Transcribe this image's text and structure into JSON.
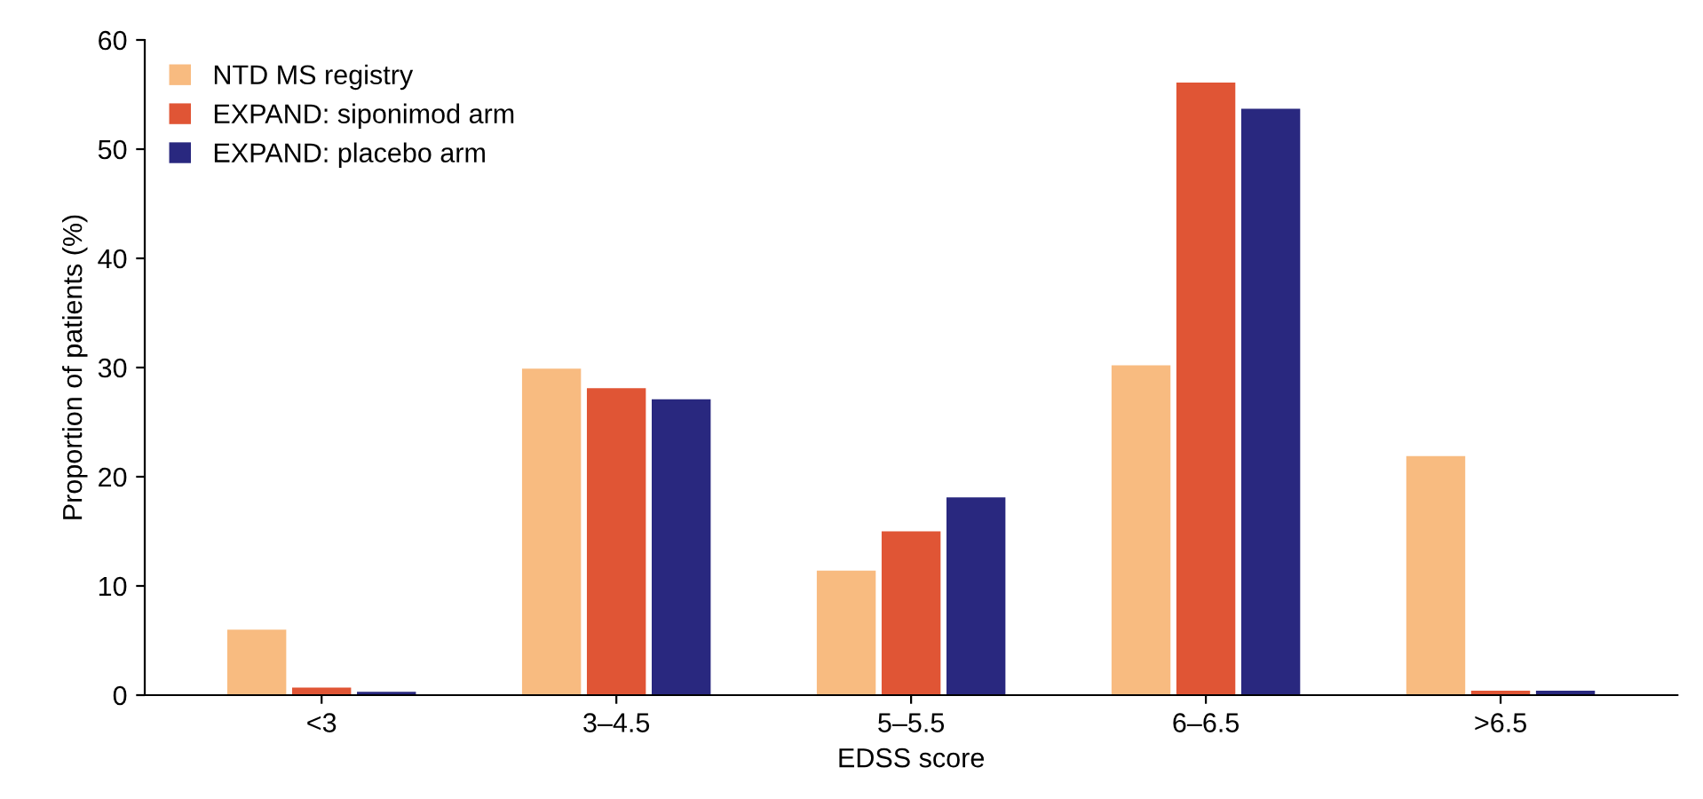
{
  "chart_data": {
    "type": "bar",
    "xlabel": "EDSS score",
    "ylabel": "Proportion of patients (%)",
    "categories": [
      "<3",
      "3–4.5",
      "5–5.5",
      "6–6.5",
      ">6.5"
    ],
    "series": [
      {
        "name": "NTD MS registry",
        "color": "#f8bb80",
        "values": [
          6.0,
          29.9,
          11.4,
          30.2,
          21.9
        ]
      },
      {
        "name": "EXPAND: siponimod arm",
        "color": "#e05535",
        "values": [
          0.7,
          28.1,
          15.0,
          56.1,
          0.4
        ]
      },
      {
        "name": "EXPAND: placebo arm",
        "color": "#29287f",
        "values": [
          0.3,
          27.1,
          18.1,
          53.7,
          0.4
        ]
      }
    ],
    "ylim": [
      0,
      60
    ],
    "yticks": [
      0,
      10,
      20,
      30,
      40,
      50,
      60
    ],
    "grid": false,
    "legend": "top left"
  }
}
